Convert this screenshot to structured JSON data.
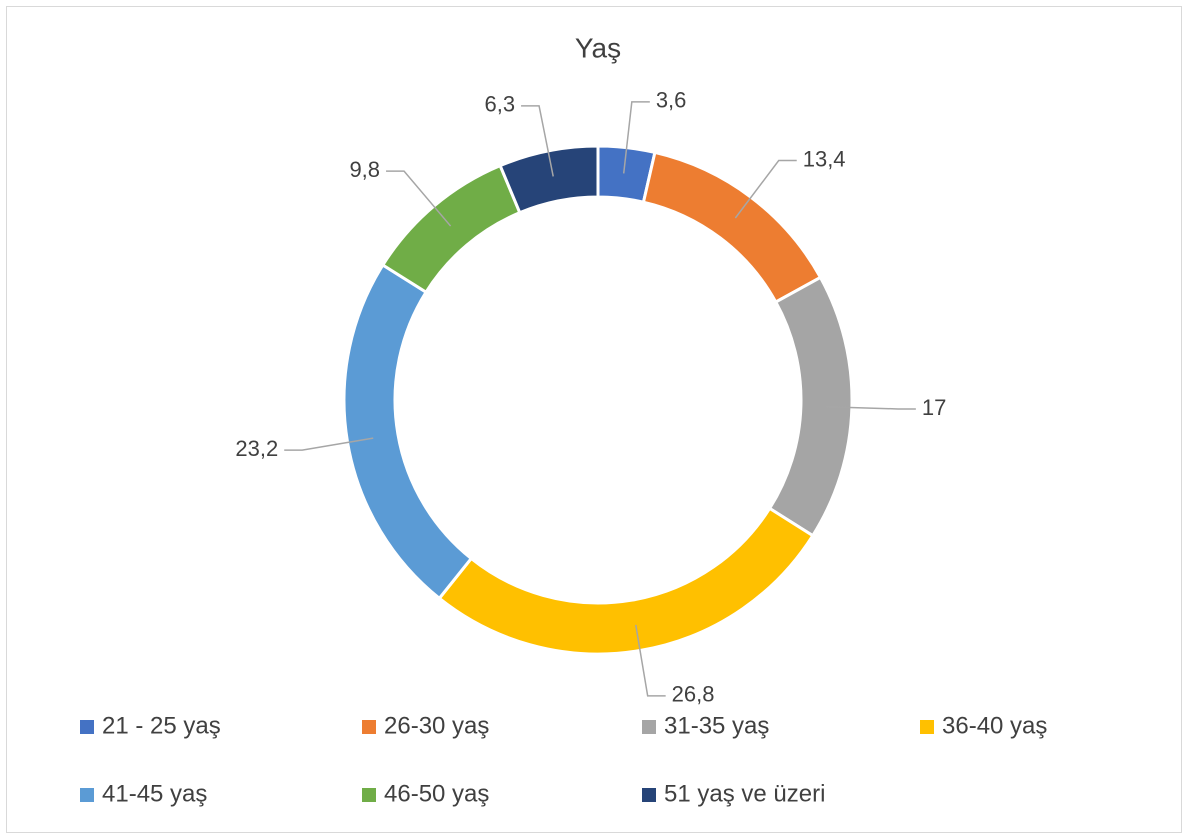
{
  "chart_data": {
    "type": "donut",
    "title": "Yaş",
    "categories": [
      "21 - 25 yaş",
      "26-30 yaş",
      "31-35 yaş",
      "36-40 yaş",
      "41-45 yaş",
      "46-50 yaş",
      "51 yaş ve üzeri"
    ],
    "values": [
      3.6,
      13.4,
      17,
      26.8,
      23.2,
      9.8,
      6.3
    ],
    "value_labels": [
      "3,6",
      "13,4",
      "17",
      "26,8",
      "23,2",
      "9,8",
      "6,3"
    ],
    "colors": [
      "#4472c4",
      "#ed7d31",
      "#a5a5a5",
      "#ffc000",
      "#5b9bd5",
      "#70ad47",
      "#264478"
    ],
    "legend": "bottom"
  }
}
